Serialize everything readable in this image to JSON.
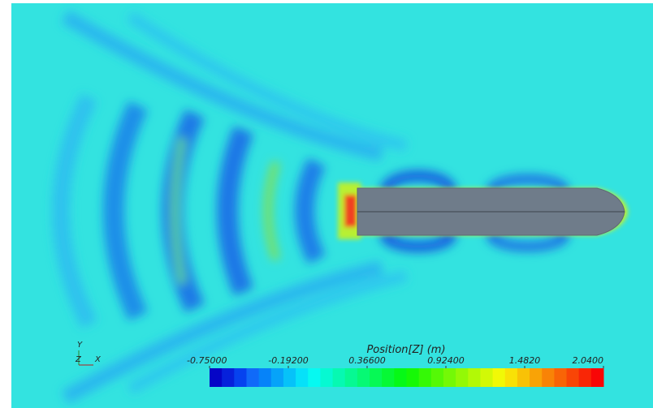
{
  "triad": {
    "y": "Y",
    "z": "Z",
    "x": "X"
  },
  "colorbar": {
    "title": "Position[Z] (m)",
    "lim": [
      -0.75,
      2.04
    ],
    "ticks": [
      {
        "value": -0.75,
        "label": "-0.75000"
      },
      {
        "value": -0.192,
        "label": "-0.19200"
      },
      {
        "value": 0.366,
        "label": "0.36600"
      },
      {
        "value": 0.924,
        "label": "0.92400"
      },
      {
        "value": 1.482,
        "label": "1.4820"
      },
      {
        "value": 2.04,
        "label": "2.0400"
      }
    ]
  }
}
